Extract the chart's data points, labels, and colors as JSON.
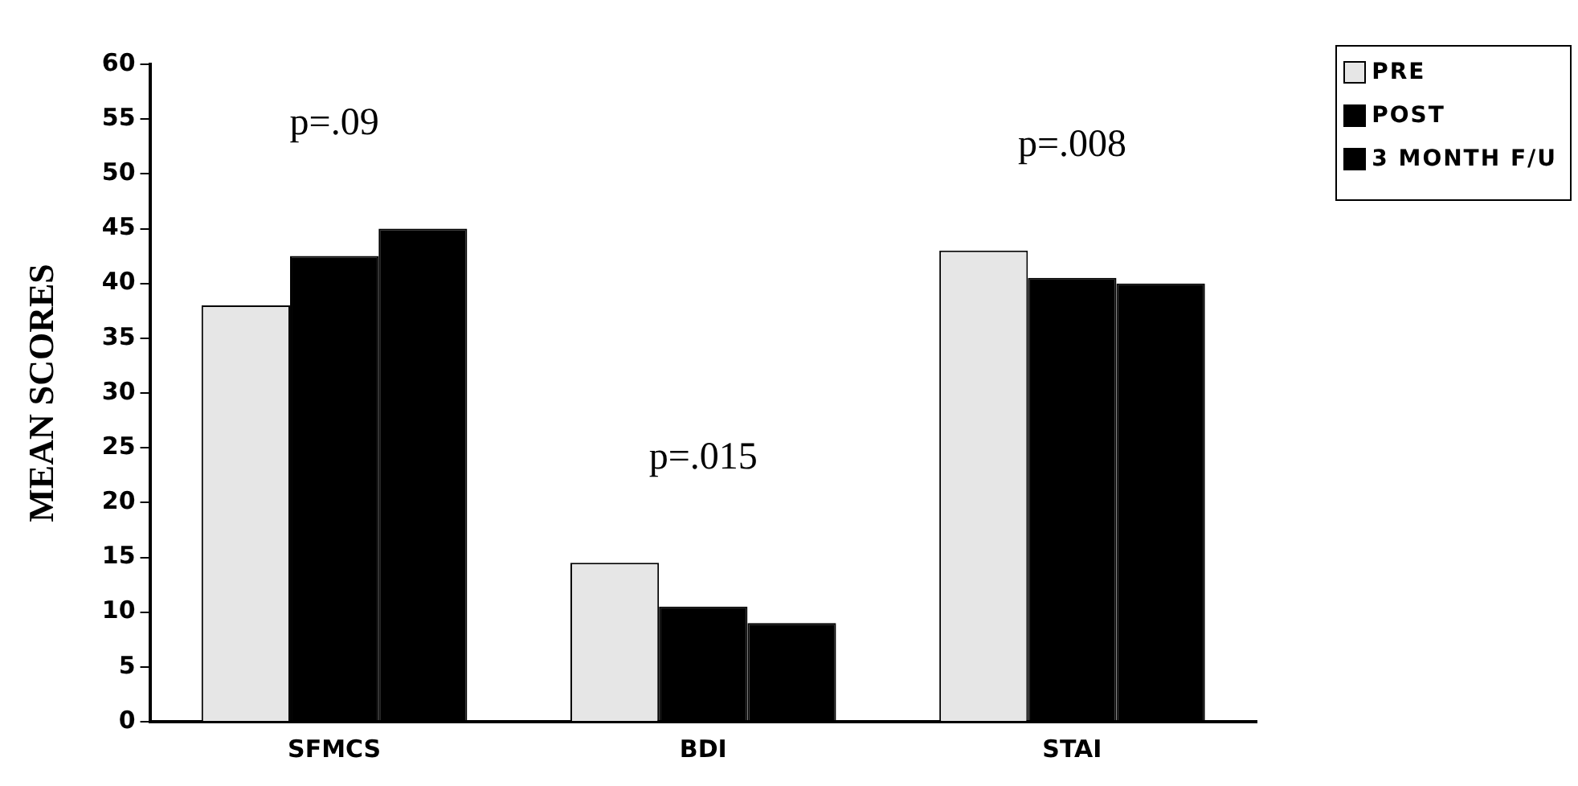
{
  "chart_data": {
    "type": "bar",
    "ylabel": "MEAN SCORES",
    "categories": [
      "SFMCS",
      "BDI",
      "STAI"
    ],
    "series": [
      {
        "name": "PRE",
        "color": "#e6e6e6",
        "values": [
          38,
          14.5,
          43
        ]
      },
      {
        "name": "POST",
        "color": "#000000",
        "values": [
          42.5,
          10.5,
          40.5
        ]
      },
      {
        "name": "3 MONTH F/U",
        "color": "#000000",
        "values": [
          45,
          9,
          40
        ]
      }
    ],
    "ylim": [
      0,
      60
    ],
    "yticks": [
      0,
      5,
      10,
      15,
      20,
      25,
      30,
      35,
      40,
      45,
      50,
      55,
      60
    ],
    "grid": false,
    "legend": "top right",
    "annotations": [
      "p=.09",
      "p=.015",
      "p=.008"
    ]
  }
}
